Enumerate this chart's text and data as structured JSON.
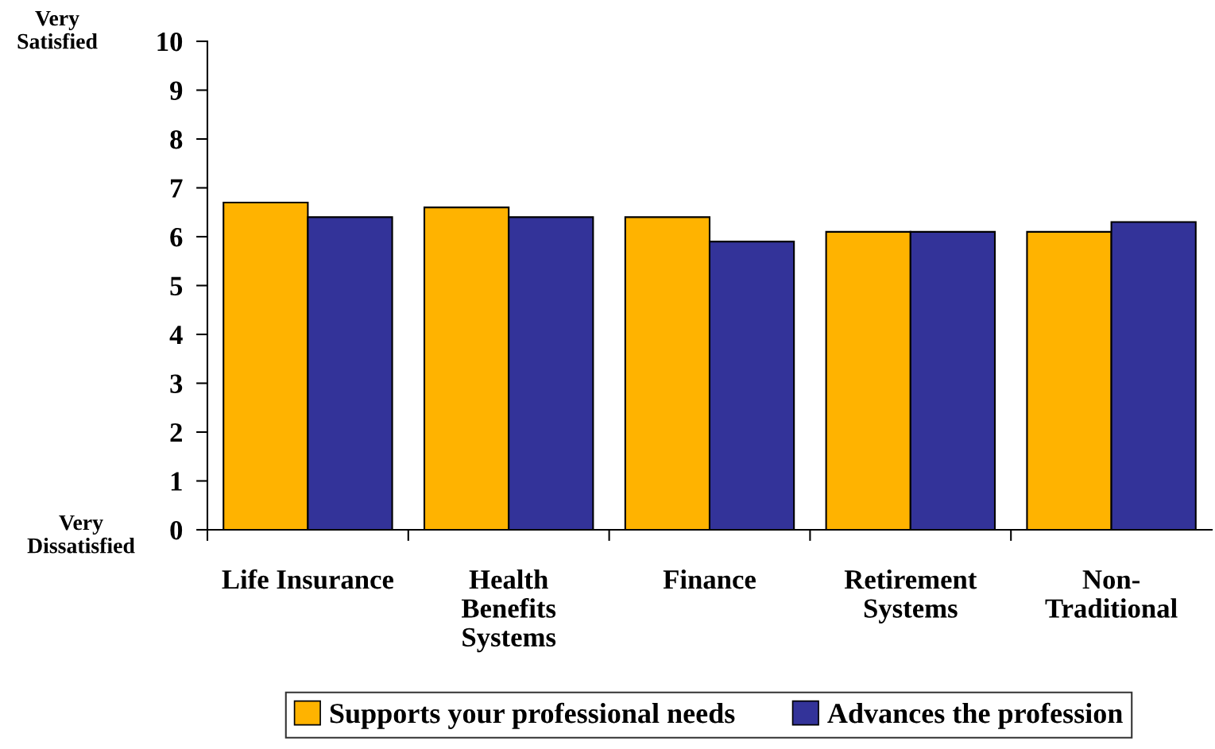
{
  "chart_data": {
    "type": "bar",
    "categories": [
      "Life Insurance",
      "Health\nBenefits\nSystems",
      "Finance",
      "Retirement\nSystems",
      "Non-\nTraditional"
    ],
    "series": [
      {
        "name": "Supports your professional needs",
        "color": "#ffb300",
        "values": [
          6.7,
          6.6,
          6.4,
          6.1,
          6.1
        ]
      },
      {
        "name": "Advances the profession",
        "color": "#333399",
        "values": [
          6.4,
          6.4,
          5.9,
          6.1,
          6.3
        ]
      }
    ],
    "ylim": [
      0,
      10
    ],
    "yticks": [
      0,
      1,
      2,
      3,
      4,
      5,
      6,
      7,
      8,
      9,
      10
    ],
    "annotations": [
      "Very\nSatisfied",
      "Very\nDissatisfied"
    ],
    "grid": false,
    "legend": "bottom"
  }
}
